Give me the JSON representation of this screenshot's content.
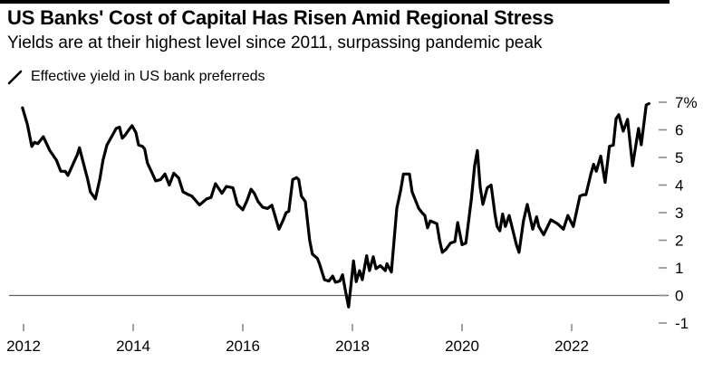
{
  "colors": {
    "background": "#ffffff",
    "top_rule": "#000000",
    "line": "#000000",
    "text": "#000000",
    "tick": "#8c8c8c",
    "zero_line": "#5f5f5f"
  },
  "chart_data": {
    "type": "line",
    "title": "US Banks' Cost of Capital Has Risen Amid Regional Stress",
    "subtitle": "Yields are at their highest level since 2011, surpassing pandemic peak",
    "legend": [
      "Effective yield in US bank preferreds"
    ],
    "legend_position": "top-left",
    "axis_side": "right",
    "grid": false,
    "zero_line": true,
    "xlabel": "",
    "ylabel": "",
    "xlim": [
      2011.95,
      2023.6
    ],
    "ylim": [
      -1,
      7
    ],
    "x_ticks": [
      2012,
      2014,
      2016,
      2018,
      2020,
      2022
    ],
    "x_tick_labels": [
      "2012",
      "2014",
      "2016",
      "2018",
      "2020",
      "2022"
    ],
    "y_ticks": [
      7,
      6,
      5,
      4,
      3,
      2,
      1,
      0,
      -1
    ],
    "y_tick_labels": [
      "7%",
      "6",
      "5",
      "4",
      "3",
      "2",
      "1",
      "0",
      "-1"
    ],
    "series": [
      {
        "name": "Effective yield in US bank preferreds",
        "color": "#000000",
        "points": [
          [
            2011.98,
            6.8
          ],
          [
            2012.07,
            6.2
          ],
          [
            2012.15,
            5.4
          ],
          [
            2012.2,
            5.55
          ],
          [
            2012.26,
            5.5
          ],
          [
            2012.36,
            5.75
          ],
          [
            2012.48,
            5.25
          ],
          [
            2012.6,
            4.9
          ],
          [
            2012.68,
            4.5
          ],
          [
            2012.76,
            4.5
          ],
          [
            2012.81,
            4.35
          ],
          [
            2012.89,
            4.7
          ],
          [
            2012.98,
            5.1
          ],
          [
            2013.02,
            5.35
          ],
          [
            2013.11,
            4.65
          ],
          [
            2013.17,
            4.2
          ],
          [
            2013.22,
            3.75
          ],
          [
            2013.31,
            3.5
          ],
          [
            2013.39,
            4.2
          ],
          [
            2013.45,
            4.9
          ],
          [
            2013.52,
            5.45
          ],
          [
            2013.62,
            5.8
          ],
          [
            2013.69,
            6.05
          ],
          [
            2013.75,
            6.1
          ],
          [
            2013.8,
            5.7
          ],
          [
            2013.85,
            5.8
          ],
          [
            2013.92,
            6.0
          ],
          [
            2013.98,
            6.15
          ],
          [
            2014.05,
            5.9
          ],
          [
            2014.1,
            5.45
          ],
          [
            2014.17,
            5.4
          ],
          [
            2014.21,
            5.3
          ],
          [
            2014.26,
            4.8
          ],
          [
            2014.33,
            4.5
          ],
          [
            2014.41,
            4.15
          ],
          [
            2014.5,
            4.2
          ],
          [
            2014.58,
            4.4
          ],
          [
            2014.66,
            4.0
          ],
          [
            2014.74,
            4.43
          ],
          [
            2014.83,
            4.26
          ],
          [
            2014.91,
            3.75
          ],
          [
            2014.99,
            3.67
          ],
          [
            2015.07,
            3.6
          ],
          [
            2015.21,
            3.28
          ],
          [
            2015.34,
            3.5
          ],
          [
            2015.42,
            3.55
          ],
          [
            2015.5,
            4.05
          ],
          [
            2015.62,
            3.7
          ],
          [
            2015.7,
            3.95
          ],
          [
            2015.82,
            3.9
          ],
          [
            2015.9,
            3.3
          ],
          [
            2016.0,
            3.1
          ],
          [
            2016.08,
            3.45
          ],
          [
            2016.15,
            3.85
          ],
          [
            2016.21,
            3.7
          ],
          [
            2016.28,
            3.4
          ],
          [
            2016.36,
            3.2
          ],
          [
            2016.45,
            3.15
          ],
          [
            2016.53,
            3.27
          ],
          [
            2016.6,
            2.8
          ],
          [
            2016.66,
            2.4
          ],
          [
            2016.73,
            2.7
          ],
          [
            2016.79,
            3.0
          ],
          [
            2016.84,
            3.05
          ],
          [
            2016.91,
            4.2
          ],
          [
            2016.98,
            4.27
          ],
          [
            2017.02,
            4.2
          ],
          [
            2017.07,
            3.6
          ],
          [
            2017.14,
            3.4
          ],
          [
            2017.22,
            2.0
          ],
          [
            2017.27,
            1.5
          ],
          [
            2017.36,
            1.34
          ],
          [
            2017.4,
            1.14
          ],
          [
            2017.49,
            0.57
          ],
          [
            2017.57,
            0.52
          ],
          [
            2017.64,
            0.7
          ],
          [
            2017.69,
            0.48
          ],
          [
            2017.77,
            0.52
          ],
          [
            2017.82,
            0.75
          ],
          [
            2017.87,
            0.2
          ],
          [
            2017.93,
            -0.42
          ],
          [
            2018.02,
            1.25
          ],
          [
            2018.07,
            0.5
          ],
          [
            2018.13,
            0.9
          ],
          [
            2018.18,
            0.57
          ],
          [
            2018.26,
            1.44
          ],
          [
            2018.31,
            0.9
          ],
          [
            2018.38,
            1.4
          ],
          [
            2018.43,
            0.97
          ],
          [
            2018.51,
            1.08
          ],
          [
            2018.6,
            0.9
          ],
          [
            2018.63,
            1.15
          ],
          [
            2018.71,
            0.85
          ],
          [
            2018.81,
            3.16
          ],
          [
            2018.88,
            3.8
          ],
          [
            2018.93,
            4.4
          ],
          [
            2019.04,
            4.4
          ],
          [
            2019.09,
            3.75
          ],
          [
            2019.14,
            3.5
          ],
          [
            2019.21,
            3.15
          ],
          [
            2019.27,
            3.0
          ],
          [
            2019.32,
            2.9
          ],
          [
            2019.37,
            2.45
          ],
          [
            2019.42,
            2.7
          ],
          [
            2019.54,
            2.6
          ],
          [
            2019.59,
            2.0
          ],
          [
            2019.64,
            1.56
          ],
          [
            2019.7,
            1.66
          ],
          [
            2019.79,
            1.9
          ],
          [
            2019.87,
            1.95
          ],
          [
            2019.92,
            2.64
          ],
          [
            2020.0,
            1.84
          ],
          [
            2020.07,
            1.9
          ],
          [
            2020.17,
            3.5
          ],
          [
            2020.23,
            4.7
          ],
          [
            2020.28,
            5.25
          ],
          [
            2020.33,
            3.93
          ],
          [
            2020.38,
            3.3
          ],
          [
            2020.46,
            3.9
          ],
          [
            2020.53,
            4.0
          ],
          [
            2020.6,
            2.95
          ],
          [
            2020.64,
            2.5
          ],
          [
            2020.69,
            2.34
          ],
          [
            2020.74,
            2.95
          ],
          [
            2020.79,
            2.5
          ],
          [
            2020.86,
            2.9
          ],
          [
            2020.94,
            2.25
          ],
          [
            2020.99,
            1.85
          ],
          [
            2021.04,
            1.56
          ],
          [
            2021.12,
            2.7
          ],
          [
            2021.19,
            3.3
          ],
          [
            2021.24,
            2.85
          ],
          [
            2021.29,
            2.4
          ],
          [
            2021.36,
            2.85
          ],
          [
            2021.4,
            2.5
          ],
          [
            2021.49,
            2.2
          ],
          [
            2021.62,
            2.74
          ],
          [
            2021.74,
            2.6
          ],
          [
            2021.85,
            2.4
          ],
          [
            2021.93,
            2.9
          ],
          [
            2022.03,
            2.5
          ],
          [
            2022.15,
            3.6
          ],
          [
            2022.21,
            3.65
          ],
          [
            2022.26,
            3.65
          ],
          [
            2022.35,
            4.4
          ],
          [
            2022.4,
            4.75
          ],
          [
            2022.45,
            4.5
          ],
          [
            2022.53,
            5.05
          ],
          [
            2022.61,
            4.1
          ],
          [
            2022.69,
            5.4
          ],
          [
            2022.76,
            5.45
          ],
          [
            2022.81,
            6.4
          ],
          [
            2022.86,
            6.55
          ],
          [
            2022.94,
            5.95
          ],
          [
            2023.02,
            6.38
          ],
          [
            2023.11,
            4.7
          ],
          [
            2023.22,
            6.05
          ],
          [
            2023.27,
            5.46
          ],
          [
            2023.36,
            6.9
          ],
          [
            2023.41,
            6.95
          ]
        ]
      }
    ]
  }
}
